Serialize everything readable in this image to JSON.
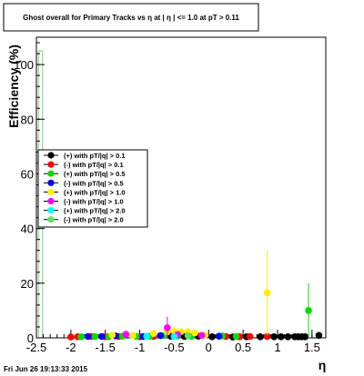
{
  "chart_data": {
    "type": "scatter",
    "title": "Ghost overall for Primary Tracks vs   η at | η | <= 1.0 at pT > 0.11",
    "xlabel": "η",
    "ylabel": "Efficiency (%)",
    "xlim": [
      -2.5,
      1.7
    ],
    "ylim": [
      0,
      110
    ],
    "x_ticks": [
      -2.5,
      -2,
      -1.5,
      -1,
      -0.5,
      0,
      0.5,
      1,
      1.5
    ],
    "x_tick_labels": [
      "-2.5",
      "-2",
      "-1.5",
      "-1",
      "-0.5",
      "0",
      "0.5",
      "1",
      "1.5"
    ],
    "y_ticks": [
      0,
      20,
      40,
      60,
      80,
      100
    ],
    "y_tick_labels": [
      "0",
      "20",
      "40",
      "60",
      "80",
      "100"
    ],
    "grid": false,
    "legend_position": "left",
    "histogram_bar": {
      "x_range": [
        -2.47,
        -2.41
      ],
      "value": 105,
      "color": "#7ccf7c"
    },
    "series": [
      {
        "name": "(+) with pT/|q| > 0.1",
        "color": "#000000",
        "points": [
          [
            -0.55,
            0.6
          ],
          [
            -0.35,
            0.5
          ],
          [
            -0.15,
            0.6
          ],
          [
            0.05,
            0.4
          ],
          [
            0.35,
            0.3
          ],
          [
            0.55,
            0.4
          ],
          [
            0.75,
            0.4
          ],
          [
            0.95,
            0.4
          ],
          [
            1.05,
            0.4
          ],
          [
            1.15,
            0.4
          ],
          [
            1.25,
            0.4
          ],
          [
            1.3,
            0.4
          ],
          [
            1.35,
            0.4
          ],
          [
            1.4,
            0.4
          ],
          [
            1.6,
            0.9
          ]
        ]
      },
      {
        "name": "(-) with pT/|q| > 0.1",
        "color": "#ff0000",
        "points": [
          [
            -2.0,
            0.3
          ],
          [
            -1.9,
            0.4
          ],
          [
            -1.7,
            0.5
          ],
          [
            -1.5,
            0.4
          ],
          [
            -1.3,
            0.5
          ],
          [
            -1.0,
            0.4
          ],
          [
            -0.8,
            0.5
          ],
          [
            0.25,
            0.5
          ],
          [
            0.45,
            0.4
          ],
          [
            0.6,
            0.5
          ],
          [
            0.85,
            0.5
          ]
        ]
      },
      {
        "name": "(+) with pT/|q| > 0.5",
        "color": "#00dd00",
        "points": [
          [
            -1.85,
            0.4
          ],
          [
            -1.65,
            0.5
          ],
          [
            -1.45,
            0.4
          ],
          [
            -1.25,
            0.6
          ],
          [
            -1.05,
            0.5
          ],
          [
            -0.85,
            0.6
          ],
          [
            -0.65,
            0.8
          ],
          [
            -0.45,
            0.7
          ],
          [
            -0.25,
            0.5
          ],
          [
            0.2,
            0.7
          ],
          [
            0.4,
            0.5
          ],
          [
            1.45,
            10.0
          ]
        ],
        "errors": [
          [
            1.45,
            10.0,
            10.0
          ]
        ]
      },
      {
        "name": "(-) with pT/|q| > 0.5",
        "color": "#0000ff",
        "points": [
          [
            -1.75,
            0.5
          ],
          [
            -1.55,
            0.5
          ],
          [
            -1.35,
            0.7
          ],
          [
            -0.95,
            0.5
          ],
          [
            -0.7,
            0.8
          ],
          [
            0.15,
            0.6
          ]
        ]
      },
      {
        "name": "(+) with pT/|q| > 1.0",
        "color": "#ffee00",
        "points": [
          [
            -1.4,
            1.0
          ],
          [
            -1.1,
            0.8
          ],
          [
            -0.8,
            1.6
          ],
          [
            -0.6,
            2.2
          ],
          [
            -0.5,
            2.4
          ],
          [
            -0.4,
            2.3
          ],
          [
            -0.3,
            2.2
          ],
          [
            -0.2,
            1.8
          ],
          [
            -0.05,
            1.0
          ],
          [
            0.85,
            16.5
          ]
        ],
        "errors": [
          [
            0.85,
            16.5,
            15.5
          ],
          [
            -0.5,
            2.4,
            1.8
          ],
          [
            -0.3,
            2.2,
            1.5
          ]
        ]
      },
      {
        "name": "(-) with pT/|q| > 1.0",
        "color": "#ff00ff",
        "points": [
          [
            -1.2,
            1.3
          ],
          [
            -0.6,
            3.7
          ],
          [
            -0.45,
            1.2
          ],
          [
            -0.1,
            0.9
          ]
        ],
        "errors": [
          [
            -0.6,
            3.7,
            4.0
          ]
        ]
      },
      {
        "name": "(+) with pT/|q| > 2.0",
        "color": "#00ffff",
        "points": [
          [
            -0.9,
            0.6
          ],
          [
            -0.5,
            0.5
          ]
        ]
      },
      {
        "name": "(-) with pT/|q| > 2.0",
        "color": "#66dd66",
        "points": [
          [
            -0.3,
            0.8
          ]
        ]
      }
    ]
  },
  "footer": {
    "timestamp": "Fri Jun 26 19:13:33 2015"
  }
}
